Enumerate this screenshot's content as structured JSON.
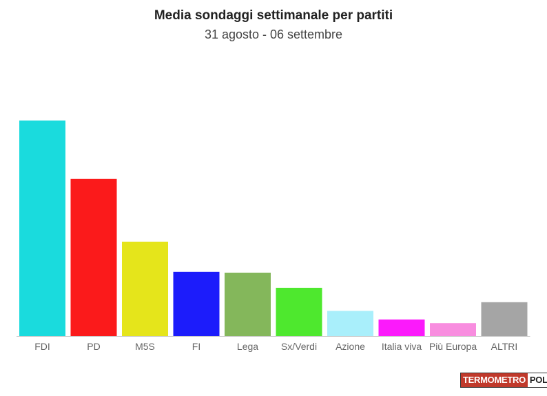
{
  "header": {
    "title": "Media sondaggi settimanale per partiti",
    "subtitle": "31 agosto - 06 settembre"
  },
  "logo": {
    "part1": "TERMOMETRO",
    "part2": "POLITICO"
  },
  "chart_data": {
    "type": "bar",
    "title": "Media sondaggi settimanale per partiti",
    "subtitle": "31 agosto - 06 settembre",
    "categories": [
      "FDI",
      "PD",
      "M5S",
      "FI",
      "Lega",
      "Sx/Verdi",
      "Azione",
      "Italia viva",
      "Più Europa",
      "ALTRI"
    ],
    "values": [
      29.9,
      21.8,
      13.1,
      8.9,
      8.8,
      6.7,
      3.5,
      2.3,
      1.8,
      4.7
    ],
    "colors": [
      "#1adbdd",
      "#fb1a1b",
      "#e5e51b",
      "#1c1cfb",
      "#84b75b",
      "#4ee82e",
      "#a9effb",
      "#fb1afb",
      "#f88ddf",
      "#a5a5a5"
    ],
    "ylim": [
      0,
      32
    ],
    "grid": false,
    "legend": "none"
  }
}
